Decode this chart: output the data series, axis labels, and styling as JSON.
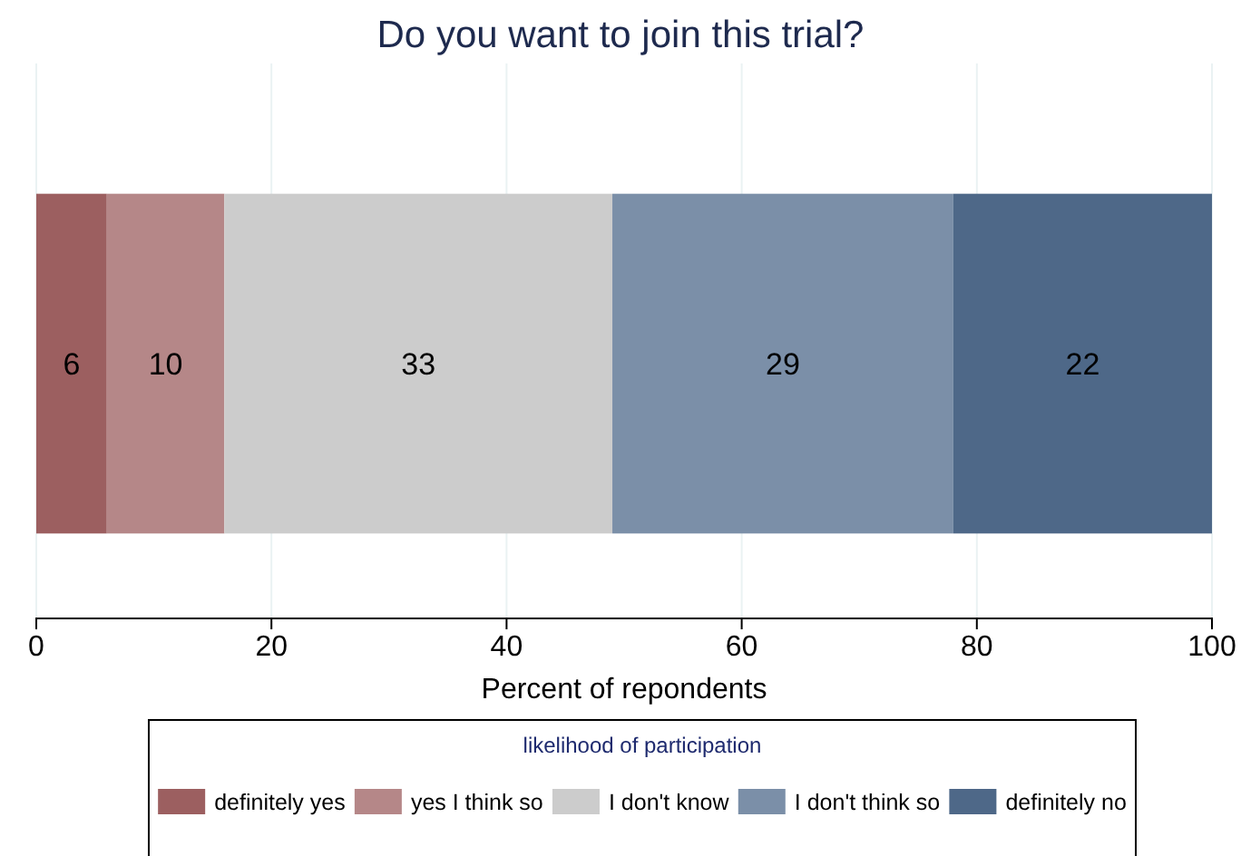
{
  "chart_data": {
    "type": "bar",
    "orientation": "horizontal",
    "stacked": true,
    "title": "Do you want to join this trial?",
    "xlabel": "Percent of repondents",
    "legend_title": "likelihood of participation",
    "categories": [
      null
    ],
    "series": [
      {
        "name": "definitely yes",
        "color": "#9c5f60",
        "values": [
          6
        ]
      },
      {
        "name": "yes I think so",
        "color": "#b58788",
        "values": [
          10
        ]
      },
      {
        "name": "I don't know",
        "color": "#cccccc",
        "values": [
          33
        ]
      },
      {
        "name": "I don't think so",
        "color": "#7b8fa8",
        "values": [
          29
        ]
      },
      {
        "name": "definitely no",
        "color": "#4e6888",
        "values": [
          22
        ]
      }
    ],
    "xlim": [
      0,
      100
    ],
    "xticks": [
      0,
      20,
      40,
      60,
      80,
      100
    ],
    "grid": "x",
    "legend": "bottom",
    "data_labels": true
  }
}
